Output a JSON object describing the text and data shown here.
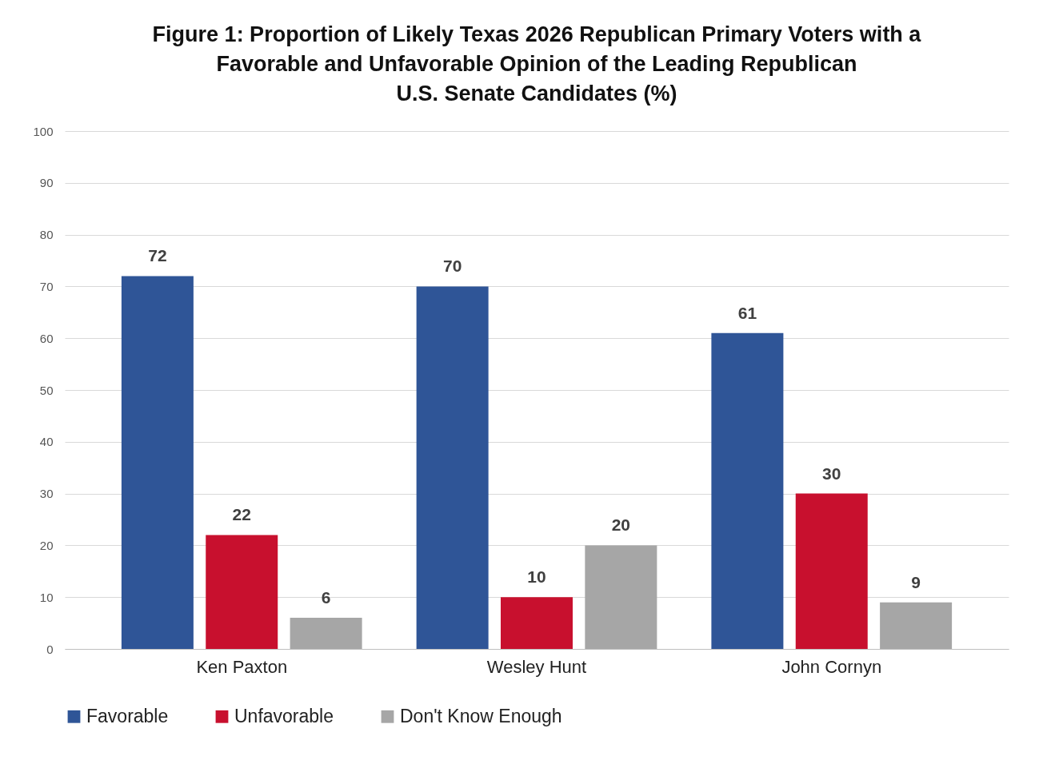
{
  "chart_data": {
    "type": "bar",
    "title": "Figure 1: Proportion of Likely Texas 2026 Republican Primary Voters with a\nFavorable and Unfavorable Opinion of the Leading Republican\nU.S. Senate Candidates (%)",
    "categories": [
      "Ken Paxton",
      "Wesley Hunt",
      "John Cornyn"
    ],
    "series": [
      {
        "name": "Favorable",
        "color": "#2f5597",
        "values": [
          72,
          70,
          61
        ]
      },
      {
        "name": "Unfavorable",
        "color": "#c8102e",
        "values": [
          22,
          10,
          30
        ]
      },
      {
        "name": "Don't Know Enough",
        "color": "#a6a6a6",
        "values": [
          6,
          20,
          9
        ]
      }
    ],
    "ylim": [
      0,
      100
    ],
    "yticks": [
      0,
      10,
      20,
      30,
      40,
      50,
      60,
      70,
      80,
      90,
      100
    ],
    "grid": "y",
    "legend": "bottom",
    "data_labels": true
  }
}
